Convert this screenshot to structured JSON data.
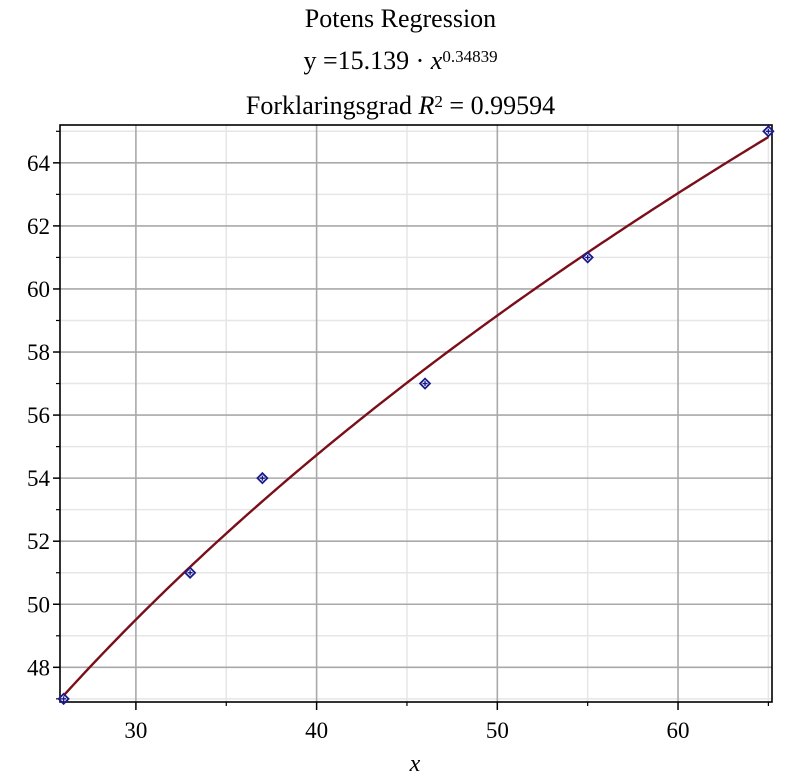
{
  "chart_data": {
    "type": "scatter",
    "title": "Potens Regression",
    "equation": {
      "prefix": "y =15.139 · ",
      "base": "x",
      "exponent": "0.34839"
    },
    "r2_line": {
      "prefix": "Forklaringsgrad ",
      "symbol": "R",
      "exponent": "2",
      "suffix": " = 0.99594"
    },
    "xlabel": "x",
    "ylabel": "",
    "xlim": [
      25.8,
      65.2
    ],
    "ylim": [
      46.9,
      65.2
    ],
    "x_ticks": [
      30,
      40,
      50,
      60
    ],
    "y_ticks": [
      48,
      50,
      52,
      54,
      56,
      58,
      60,
      62,
      64
    ],
    "x_minor_step": 5,
    "y_minor_step": 1,
    "grid": true,
    "model": {
      "coefficient": 15.139,
      "exponent": 0.34839
    },
    "series": [
      {
        "kind": "points",
        "x": [
          26,
          33,
          37,
          46,
          55,
          65
        ],
        "y": [
          47,
          51,
          54,
          57,
          61,
          65
        ],
        "color": "#1a1a8c"
      },
      {
        "kind": "curve",
        "color": "#7a0f1a"
      }
    ]
  }
}
